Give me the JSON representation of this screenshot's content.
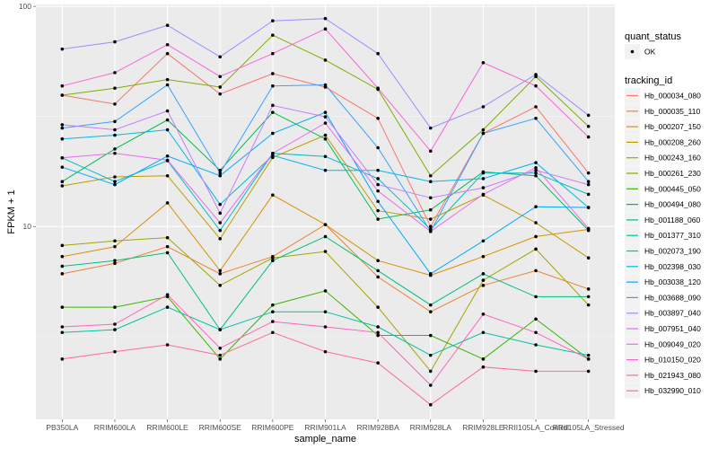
{
  "chart_data": {
    "type": "line",
    "title": "",
    "xlabel": "sample_name",
    "ylabel": "FPKM + 1",
    "yscale": "log10",
    "ylim": [
      1.33,
      102
    ],
    "yticks": [
      {
        "value": 10,
        "label": "10"
      },
      {
        "value": 100,
        "label": "100"
      }
    ],
    "grid": true,
    "categories": [
      "PB350LA",
      "RRIM600LA",
      "RRIM600LE",
      "RRIM600SE",
      "RRIM600PE",
      "RRIM901LA",
      "RRIM928BA",
      "RRIM928LA",
      "RRIM928LE",
      "RRII105LA_Control",
      "RRII105LA_Stressed"
    ],
    "legend": {
      "placement": "right",
      "shape_title": "quant_status",
      "shape_entries": [
        "OK"
      ],
      "color_title": "tracking_id"
    },
    "series": [
      {
        "name": "Hb_000034_080",
        "color": "#F8766D",
        "values": [
          39.5,
          36.0,
          61.0,
          40.0,
          49.5,
          43.0,
          31.0,
          10.0,
          26.5,
          35.0,
          17.5
        ]
      },
      {
        "name": "Hb_000035_110",
        "color": "#EA8331",
        "values": [
          6.1,
          6.8,
          8.1,
          6.1,
          7.3,
          10.2,
          5.9,
          4.1,
          5.4,
          6.3,
          5.2
        ]
      },
      {
        "name": "Hb_000207_150",
        "color": "#D89000",
        "values": [
          7.3,
          8.1,
          12.8,
          6.3,
          13.9,
          10.2,
          7.0,
          6.0,
          7.3,
          9.0,
          9.7
        ]
      },
      {
        "name": "Hb_000208_260",
        "color": "#C09B00",
        "values": [
          15.3,
          16.8,
          17.0,
          8.8,
          20.6,
          26.0,
          11.8,
          10.8,
          13.9,
          10.4,
          7.2
        ]
      },
      {
        "name": "Hb_000243_160",
        "color": "#A3A500",
        "values": [
          8.2,
          8.6,
          8.9,
          5.4,
          7.2,
          7.7,
          4.3,
          2.2,
          5.7,
          7.9,
          4.4
        ]
      },
      {
        "name": "Hb_000261_230",
        "color": "#7CAE00",
        "values": [
          39.5,
          42.5,
          46.5,
          43.0,
          74.0,
          57.0,
          42.0,
          17.0,
          27.5,
          48.0,
          28.5
        ]
      },
      {
        "name": "Hb_000445_050",
        "color": "#39B600",
        "values": [
          4.3,
          4.3,
          4.8,
          2.5,
          4.4,
          5.1,
          3.2,
          3.2,
          2.5,
          3.8,
          2.5
        ]
      },
      {
        "name": "Hb_000494_080",
        "color": "#00BB4E",
        "values": [
          16.0,
          22.5,
          30.5,
          18.0,
          33.0,
          25.0,
          10.8,
          11.9,
          17.7,
          17.0,
          9.6
        ]
      },
      {
        "name": "Hb_001188_060",
        "color": "#00BF7D",
        "values": [
          6.6,
          7.0,
          7.6,
          3.4,
          7.0,
          9.0,
          6.3,
          4.4,
          6.1,
          4.8,
          4.8
        ]
      },
      {
        "name": "Hb_001377_310",
        "color": "#00C1A3",
        "values": [
          3.3,
          3.4,
          4.3,
          3.4,
          4.1,
          4.1,
          3.5,
          2.6,
          3.3,
          2.9,
          2.6
        ]
      },
      {
        "name": "Hb_002073_190",
        "color": "#00BFC4",
        "values": [
          20.5,
          16.0,
          19.9,
          9.6,
          21.5,
          20.8,
          16.5,
          9.7,
          17.5,
          17.5,
          14.0
        ]
      },
      {
        "name": "Hb_002398_030",
        "color": "#00B8E7",
        "values": [
          25.0,
          26.0,
          27.5,
          12.6,
          21.0,
          18.0,
          18.0,
          16.0,
          16.5,
          19.5,
          12.2
        ]
      },
      {
        "name": "Hb_003038_120",
        "color": "#00A9FF",
        "values": [
          18.6,
          15.5,
          20.9,
          17.0,
          26.5,
          33.0,
          13.0,
          6.1,
          8.6,
          12.3,
          12.2
        ]
      },
      {
        "name": "Hb_003688_090",
        "color": "#35A2FF",
        "values": [
          28.0,
          30.0,
          44.0,
          17.5,
          43.5,
          44.0,
          22.8,
          9.5,
          26.5,
          31.0,
          16.0
        ]
      },
      {
        "name": "Hb_003897_040",
        "color": "#9590FF",
        "values": [
          64.0,
          69.0,
          82.0,
          59.0,
          86.0,
          88.0,
          61.0,
          28.0,
          35.0,
          49.0,
          32.0
        ]
      },
      {
        "name": "Hb_007951_040",
        "color": "#C77CFF",
        "values": [
          29.0,
          27.5,
          33.5,
          11.5,
          35.5,
          31.5,
          15.5,
          13.5,
          15.0,
          18.0,
          15.5
        ]
      },
      {
        "name": "Hb_009049_020",
        "color": "#E76BF3",
        "values": [
          20.5,
          21.5,
          20.0,
          10.4,
          21.5,
          29.5,
          14.5,
          9.5,
          14.0,
          18.5,
          9.8
        ]
      },
      {
        "name": "Hb_010150_020",
        "color": "#FA62DB",
        "values": [
          43.5,
          50.0,
          67.0,
          48.0,
          61.0,
          79.0,
          42.5,
          22.0,
          55.5,
          43.5,
          25.5
        ]
      },
      {
        "name": "Hb_021943_080",
        "color": "#FF62BC",
        "values": [
          3.5,
          3.6,
          4.9,
          2.8,
          3.7,
          3.5,
          3.3,
          1.9,
          4.0,
          3.3,
          2.5
        ]
      },
      {
        "name": "Hb_032990_010",
        "color": "#FF6C91",
        "values": [
          2.5,
          2.7,
          2.9,
          2.6,
          3.3,
          2.7,
          2.4,
          1.55,
          2.3,
          2.2,
          2.2
        ]
      }
    ]
  }
}
